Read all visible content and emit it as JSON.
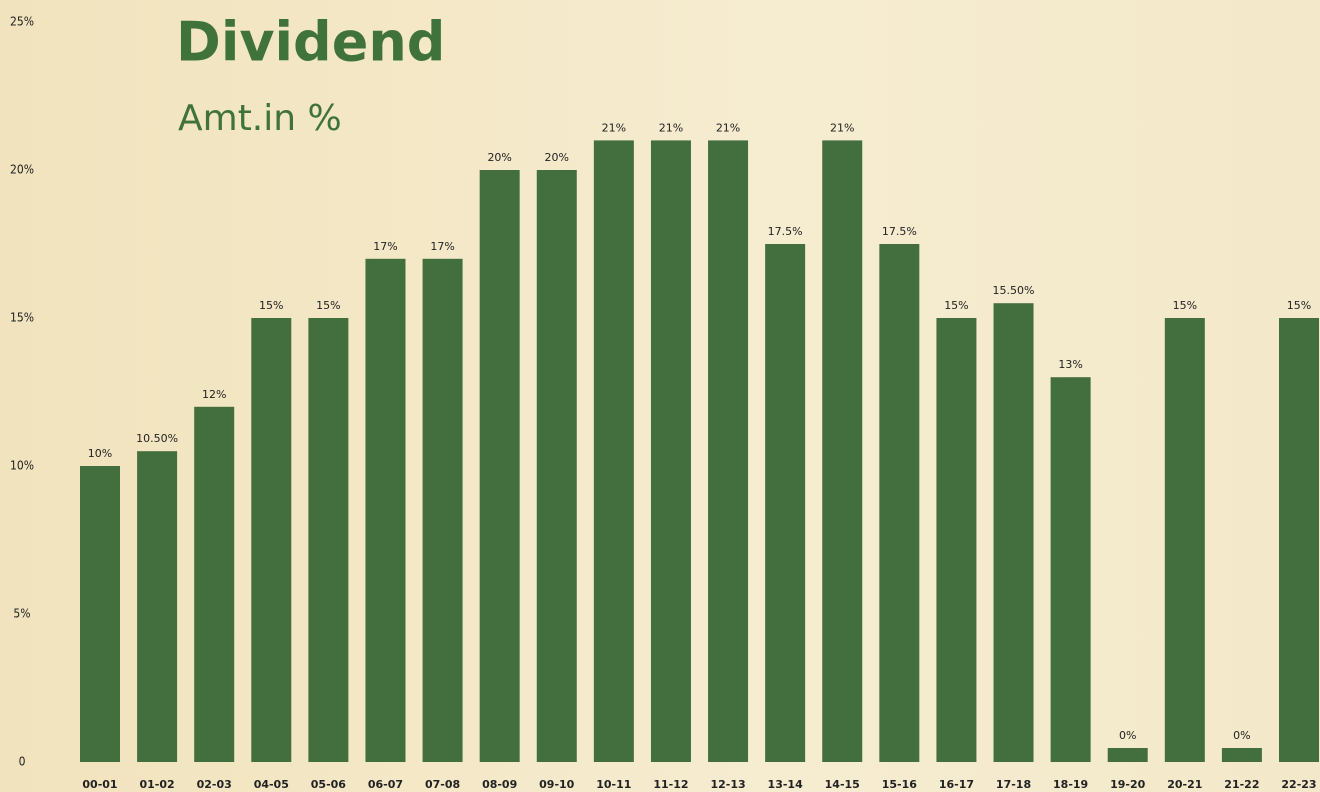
{
  "chart_data": {
    "type": "bar",
    "title": "Dividend",
    "subtitle": "Amt.in %",
    "categories": [
      "00-01",
      "01-02",
      "02-03",
      "04-05",
      "05-06",
      "06-07",
      "07-08",
      "08-09",
      "09-10",
      "10-11",
      "11-12",
      "12-13",
      "13-14",
      "14-15",
      "15-16",
      "16-17",
      "17-18",
      "18-19",
      "19-20",
      "20-21",
      "21-22",
      "22-23"
    ],
    "values": [
      10,
      10.5,
      12,
      15,
      15,
      17,
      17,
      20,
      20,
      21,
      21,
      21,
      17.5,
      21,
      17.5,
      15,
      15.5,
      13,
      0,
      15,
      0,
      15
    ],
    "value_labels": [
      "10%",
      "10.50%",
      "12%",
      "15%",
      "15%",
      "17%",
      "17%",
      "20%",
      "20%",
      "21%",
      "21%",
      "21%",
      "17.5%",
      "21%",
      "17.5%",
      "15%",
      "15.50%",
      "13%",
      "0%",
      "15%",
      "0%",
      "15%"
    ],
    "color": "#436f3f",
    "ylim": [
      0,
      25
    ],
    "yticks": [
      0,
      {
        "value": 5,
        "label": "5%"
      },
      {
        "value": 10,
        "label": "10%"
      },
      {
        "value": 15,
        "label": "15%"
      },
      {
        "value": 20,
        "label": "20%"
      },
      {
        "value": 25,
        "label": "25%"
      }
    ],
    "grid": false
  }
}
